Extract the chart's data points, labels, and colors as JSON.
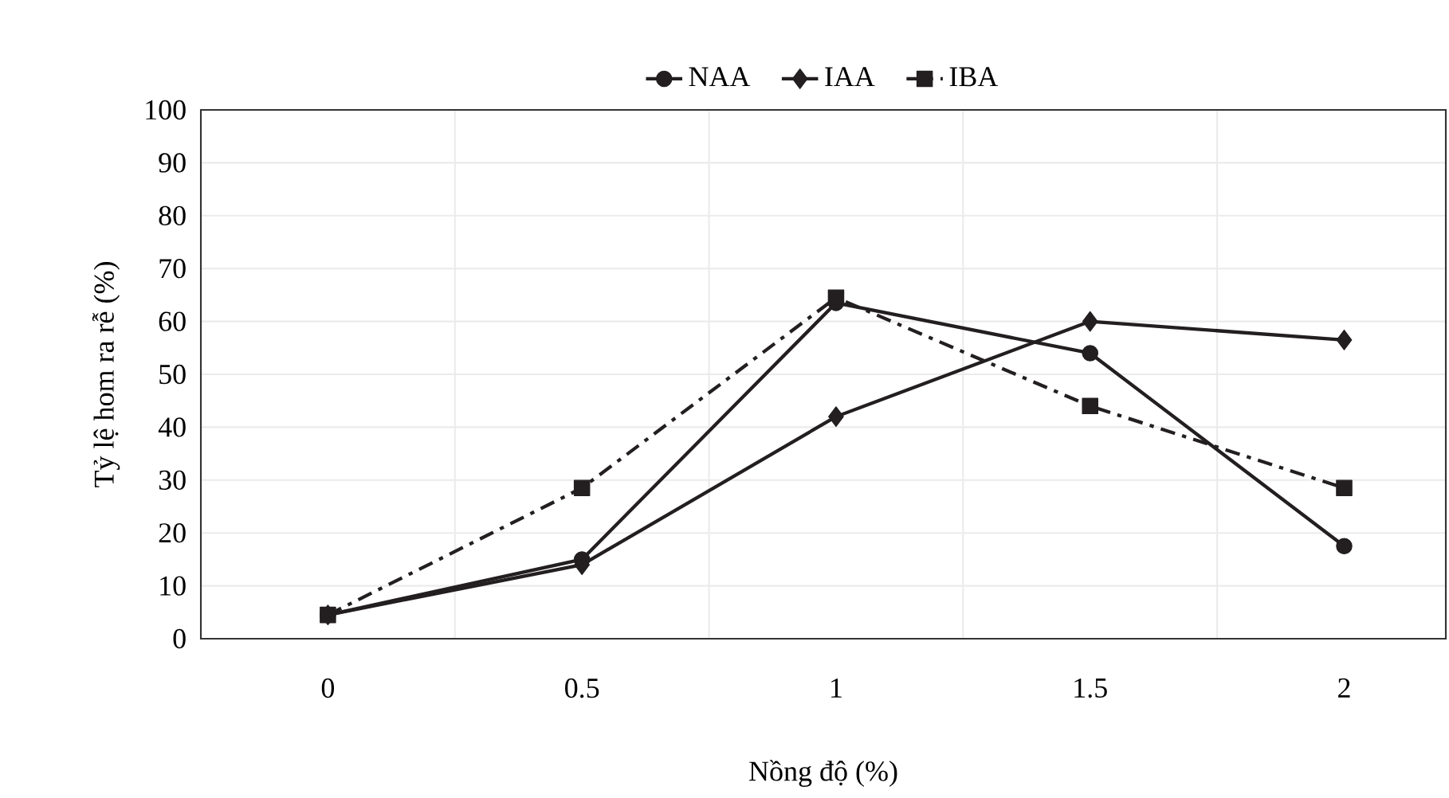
{
  "chart_data": {
    "type": "line",
    "xlabel": "Nồng độ (%)",
    "ylabel": "Tỷ lệ hom ra rễ (%)",
    "categories": [
      "0",
      "0.5",
      "1",
      "1.5",
      "2"
    ],
    "series": [
      {
        "name": "NAA",
        "color": "#231f20",
        "marker": "circle",
        "line_style": "solid",
        "values": [
          4.5,
          15,
          63.5,
          54,
          17.5
        ]
      },
      {
        "name": "IAA",
        "color": "#231f20",
        "marker": "diamond",
        "line_style": "solid",
        "values": [
          4.5,
          14,
          42,
          60,
          56.5
        ]
      },
      {
        "name": "IBA",
        "color": "#231f20",
        "marker": "square",
        "line_style": "dashdot",
        "values": [
          4.5,
          28.5,
          64.5,
          44,
          28.5
        ]
      }
    ],
    "ylim": [
      0,
      100
    ],
    "yticks": [
      0,
      10,
      20,
      30,
      40,
      50,
      60,
      70,
      80,
      90,
      100
    ],
    "grid": true,
    "legend": "top"
  }
}
